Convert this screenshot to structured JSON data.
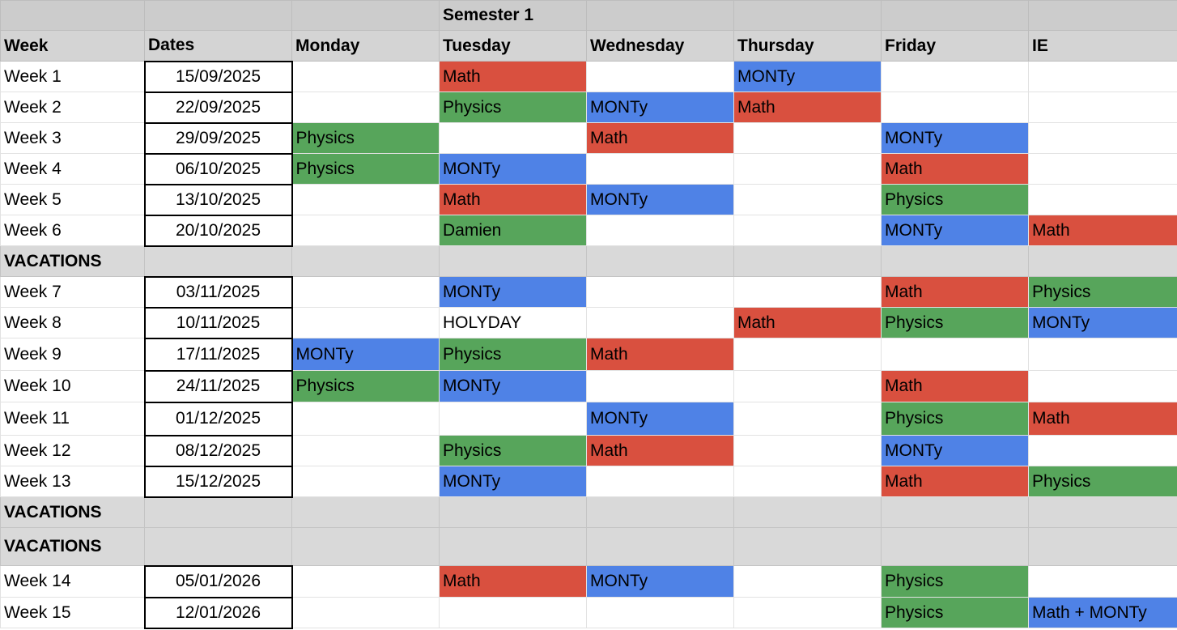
{
  "colors": {
    "Math": "#d9503f",
    "Physics": "#57a55b",
    "MONTy": "#4f82e6",
    "red": "#d9503f",
    "green": "#57a55b",
    "blue": "#4f82e6"
  },
  "title": "Semester 1",
  "headers": [
    "Week",
    "Dates",
    "Monday",
    "Tuesday",
    "Wednesday",
    "Thursday",
    "Friday",
    "IE"
  ],
  "rows": [
    {
      "type": "week",
      "week": "Week 1",
      "date": "15/09/2025",
      "cells": [
        [
          "",
          ""
        ],
        [
          "Math",
          "red"
        ],
        [
          "",
          ""
        ],
        [
          "MONTy",
          "blue"
        ],
        [
          "",
          ""
        ],
        [
          "",
          ""
        ]
      ]
    },
    {
      "type": "week",
      "week": "Week 2",
      "date": "22/09/2025",
      "cells": [
        [
          "",
          ""
        ],
        [
          "Physics",
          "green"
        ],
        [
          "MONTy",
          "blue"
        ],
        [
          "Math",
          "red"
        ],
        [
          "",
          ""
        ],
        [
          "",
          ""
        ]
      ]
    },
    {
      "type": "week",
      "week": "Week 3",
      "date": "29/09/2025",
      "cells": [
        [
          "Physics",
          "green"
        ],
        [
          "",
          ""
        ],
        [
          "Math",
          "red"
        ],
        [
          "",
          ""
        ],
        [
          "MONTy",
          "blue"
        ],
        [
          "",
          ""
        ]
      ]
    },
    {
      "type": "week",
      "week": "Week 4",
      "date": "06/10/2025",
      "cells": [
        [
          "Physics",
          "green"
        ],
        [
          "MONTy",
          "blue"
        ],
        [
          "",
          ""
        ],
        [
          "",
          ""
        ],
        [
          "Math",
          "red"
        ],
        [
          "",
          ""
        ]
      ]
    },
    {
      "type": "week",
      "week": "Week 5",
      "date": "13/10/2025",
      "cells": [
        [
          "",
          ""
        ],
        [
          "Math",
          "red"
        ],
        [
          "MONTy",
          "blue"
        ],
        [
          "",
          ""
        ],
        [
          "Physics",
          "green"
        ],
        [
          "",
          ""
        ]
      ]
    },
    {
      "type": "week",
      "week": "Week 6",
      "date": "20/10/2025",
      "cells": [
        [
          "",
          ""
        ],
        [
          "Damien",
          "green"
        ],
        [
          "",
          ""
        ],
        [
          "",
          ""
        ],
        [
          "MONTy",
          "blue"
        ],
        [
          "Math",
          "red"
        ]
      ]
    },
    {
      "type": "vacation",
      "week": "VACATIONS"
    },
    {
      "type": "week",
      "week": "Week 7",
      "date": "03/11/2025",
      "cells": [
        [
          "",
          ""
        ],
        [
          "MONTy",
          "blue"
        ],
        [
          "",
          ""
        ],
        [
          "",
          ""
        ],
        [
          "Math",
          "red"
        ],
        [
          "Physics",
          "green"
        ]
      ]
    },
    {
      "type": "week",
      "week": "Week 8",
      "date": "10/11/2025",
      "cells": [
        [
          "",
          ""
        ],
        [
          "HOLYDAY",
          ""
        ],
        [
          "",
          ""
        ],
        [
          "Math",
          "red"
        ],
        [
          "Physics",
          "green"
        ],
        [
          "MONTy",
          "blue"
        ]
      ]
    },
    {
      "type": "week",
      "week": "Week 9",
      "date": "17/11/2025",
      "cells": [
        [
          "MONTy",
          "blue"
        ],
        [
          "Physics",
          "green"
        ],
        [
          "Math",
          "red"
        ],
        [
          "",
          ""
        ],
        [
          "",
          ""
        ],
        [
          "",
          ""
        ]
      ]
    },
    {
      "type": "week",
      "week": "Week 10",
      "date": "24/11/2025",
      "cells": [
        [
          "Physics",
          "green"
        ],
        [
          "MONTy",
          "blue"
        ],
        [
          "",
          ""
        ],
        [
          "",
          ""
        ],
        [
          "Math",
          "red"
        ],
        [
          "",
          ""
        ]
      ]
    },
    {
      "type": "week",
      "week": "Week 11",
      "date": "01/12/2025",
      "cells": [
        [
          "",
          ""
        ],
        [
          "",
          ""
        ],
        [
          "MONTy",
          "blue"
        ],
        [
          "",
          ""
        ],
        [
          "Physics",
          "green"
        ],
        [
          "Math",
          "red"
        ]
      ]
    },
    {
      "type": "week",
      "week": "Week 12",
      "date": "08/12/2025",
      "cells": [
        [
          "",
          ""
        ],
        [
          "Physics",
          "green"
        ],
        [
          "Math",
          "red"
        ],
        [
          "",
          ""
        ],
        [
          "MONTy",
          "blue"
        ],
        [
          "",
          ""
        ]
      ]
    },
    {
      "type": "week",
      "week": "Week 13",
      "date": "15/12/2025",
      "cells": [
        [
          "",
          ""
        ],
        [
          "MONTy",
          "blue"
        ],
        [
          "",
          ""
        ],
        [
          "",
          ""
        ],
        [
          "Math",
          "red"
        ],
        [
          "Physics",
          "green"
        ]
      ]
    },
    {
      "type": "vacation",
      "week": "VACATIONS"
    },
    {
      "type": "vacation",
      "week": "VACATIONS"
    },
    {
      "type": "week",
      "week": "Week 14",
      "date": "05/01/2026",
      "cells": [
        [
          "",
          ""
        ],
        [
          "Math",
          "red"
        ],
        [
          "MONTy",
          "blue"
        ],
        [
          "",
          ""
        ],
        [
          "Physics",
          "green"
        ],
        [
          "",
          ""
        ]
      ]
    },
    {
      "type": "week",
      "week": "Week 15",
      "date": "12/01/2026",
      "cells": [
        [
          "",
          ""
        ],
        [
          "",
          ""
        ],
        [
          "",
          ""
        ],
        [
          "",
          ""
        ],
        [
          "Physics",
          "green"
        ],
        [
          "Math + MONTy",
          "blue"
        ]
      ]
    }
  ]
}
